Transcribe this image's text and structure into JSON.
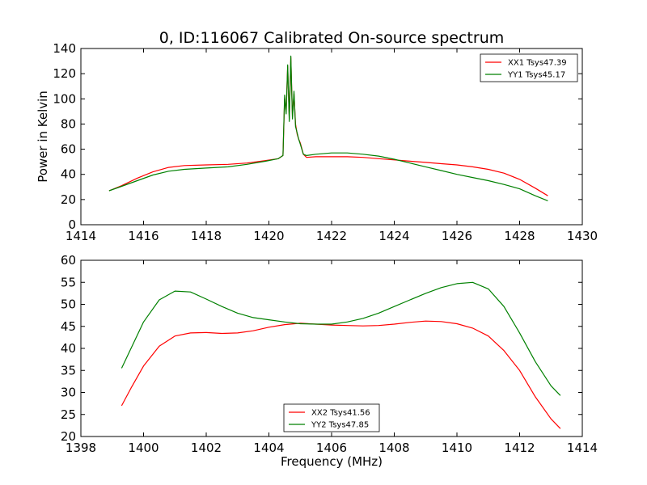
{
  "figure": {
    "title": "0, ID:116067 Calibrated On-source spectrum",
    "ylabel": "Power in Kelvin",
    "xlabel": "Frequency (MHz)"
  },
  "chart_data": [
    {
      "type": "line",
      "title": "0, ID:116067 Calibrated On-source spectrum",
      "xlabel": "",
      "ylabel": "Power in Kelvin",
      "xlim": [
        1414,
        1430
      ],
      "ylim": [
        0,
        140
      ],
      "xticks": [
        1414,
        1416,
        1418,
        1420,
        1422,
        1424,
        1426,
        1428,
        1430
      ],
      "yticks": [
        0,
        20,
        40,
        60,
        80,
        100,
        120,
        140
      ],
      "legend_position": "top-right",
      "series": [
        {
          "name": "XX1 Tsys47.39",
          "color": "#ff0000",
          "x": [
            1414.9,
            1415.3,
            1415.8,
            1416.3,
            1416.8,
            1417.3,
            1418.0,
            1418.7,
            1419.3,
            1419.9,
            1420.3,
            1420.45,
            1420.5,
            1420.55,
            1420.6,
            1420.65,
            1420.7,
            1420.75,
            1420.8,
            1420.85,
            1420.9,
            1420.95,
            1421.0,
            1421.1,
            1421.2,
            1421.5,
            1422.0,
            1422.5,
            1423.0,
            1423.5,
            1424.0,
            1424.5,
            1425.0,
            1425.5,
            1426.0,
            1426.5,
            1427.0,
            1427.5,
            1428.0,
            1428.5,
            1428.9
          ],
          "values": [
            27,
            31,
            37,
            42,
            45.5,
            47,
            47.5,
            48,
            49,
            51,
            52.5,
            55,
            100,
            90,
            126,
            84,
            133,
            86,
            104,
            80,
            72,
            68,
            65,
            56,
            53.5,
            54,
            54,
            54,
            53.5,
            52.5,
            51.5,
            50.5,
            49.5,
            48.5,
            47.5,
            46,
            44,
            41,
            36,
            29,
            23
          ]
        },
        {
          "name": "YY1 Tsys45.17",
          "color": "#008000",
          "x": [
            1414.9,
            1415.3,
            1415.8,
            1416.3,
            1416.8,
            1417.3,
            1418.0,
            1418.7,
            1419.3,
            1419.9,
            1420.3,
            1420.45,
            1420.5,
            1420.55,
            1420.6,
            1420.65,
            1420.7,
            1420.75,
            1420.8,
            1420.85,
            1420.9,
            1420.95,
            1421.0,
            1421.1,
            1421.2,
            1421.5,
            1422.0,
            1422.5,
            1423.0,
            1423.5,
            1424.0,
            1424.5,
            1425.0,
            1425.5,
            1426.0,
            1426.5,
            1427.0,
            1427.5,
            1428.0,
            1428.5,
            1428.9
          ],
          "values": [
            27,
            30.5,
            35,
            39.5,
            42.5,
            44,
            45,
            46,
            48,
            50.5,
            52.5,
            55,
            103,
            88,
            127,
            82,
            134,
            84,
            106,
            78,
            73,
            68,
            64,
            56,
            55,
            56,
            57,
            57,
            56,
            54.5,
            52,
            49,
            46,
            43,
            40,
            37.5,
            35,
            32,
            28.5,
            23,
            19
          ]
        }
      ]
    },
    {
      "type": "line",
      "title": "",
      "xlabel": "Frequency (MHz)",
      "ylabel": "",
      "xlim": [
        1398,
        1414
      ],
      "ylim": [
        20,
        60
      ],
      "xticks": [
        1398,
        1400,
        1402,
        1404,
        1406,
        1408,
        1410,
        1412,
        1414
      ],
      "yticks": [
        20,
        25,
        30,
        35,
        40,
        45,
        50,
        55,
        60
      ],
      "legend_position": "bottom-center",
      "series": [
        {
          "name": "XX2 Tsys41.56",
          "color": "#ff0000",
          "x": [
            1399.3,
            1399.6,
            1400.0,
            1400.5,
            1401.0,
            1401.5,
            1402.0,
            1402.5,
            1403.0,
            1403.5,
            1404.0,
            1404.5,
            1405.0,
            1405.5,
            1406.0,
            1406.5,
            1407.0,
            1407.5,
            1408.0,
            1408.5,
            1409.0,
            1409.5,
            1410.0,
            1410.5,
            1411.0,
            1411.5,
            1412.0,
            1412.5,
            1413.0,
            1413.3
          ],
          "values": [
            27,
            31,
            36,
            40.5,
            42.8,
            43.5,
            43.6,
            43.4,
            43.5,
            44,
            44.8,
            45.4,
            45.7,
            45.5,
            45.3,
            45.2,
            45.1,
            45.2,
            45.5,
            45.9,
            46.2,
            46.1,
            45.6,
            44.6,
            42.8,
            39.5,
            35,
            29,
            24,
            21.8
          ]
        },
        {
          "name": "YY2 Tsys47.85",
          "color": "#008000",
          "x": [
            1399.3,
            1399.6,
            1400.0,
            1400.5,
            1401.0,
            1401.5,
            1402.0,
            1402.5,
            1403.0,
            1403.5,
            1404.0,
            1404.5,
            1405.0,
            1405.5,
            1406.0,
            1406.5,
            1407.0,
            1407.5,
            1408.0,
            1408.5,
            1409.0,
            1409.5,
            1410.0,
            1410.5,
            1411.0,
            1411.5,
            1412.0,
            1412.5,
            1413.0,
            1413.3
          ],
          "values": [
            35.5,
            40,
            46,
            51,
            53,
            52.8,
            51.2,
            49.5,
            48,
            47,
            46.5,
            46,
            45.6,
            45.5,
            45.5,
            46,
            46.8,
            48,
            49.5,
            51,
            52.5,
            53.8,
            54.7,
            55,
            53.5,
            49.5,
            43.5,
            37,
            31.5,
            29.3
          ]
        }
      ]
    }
  ]
}
